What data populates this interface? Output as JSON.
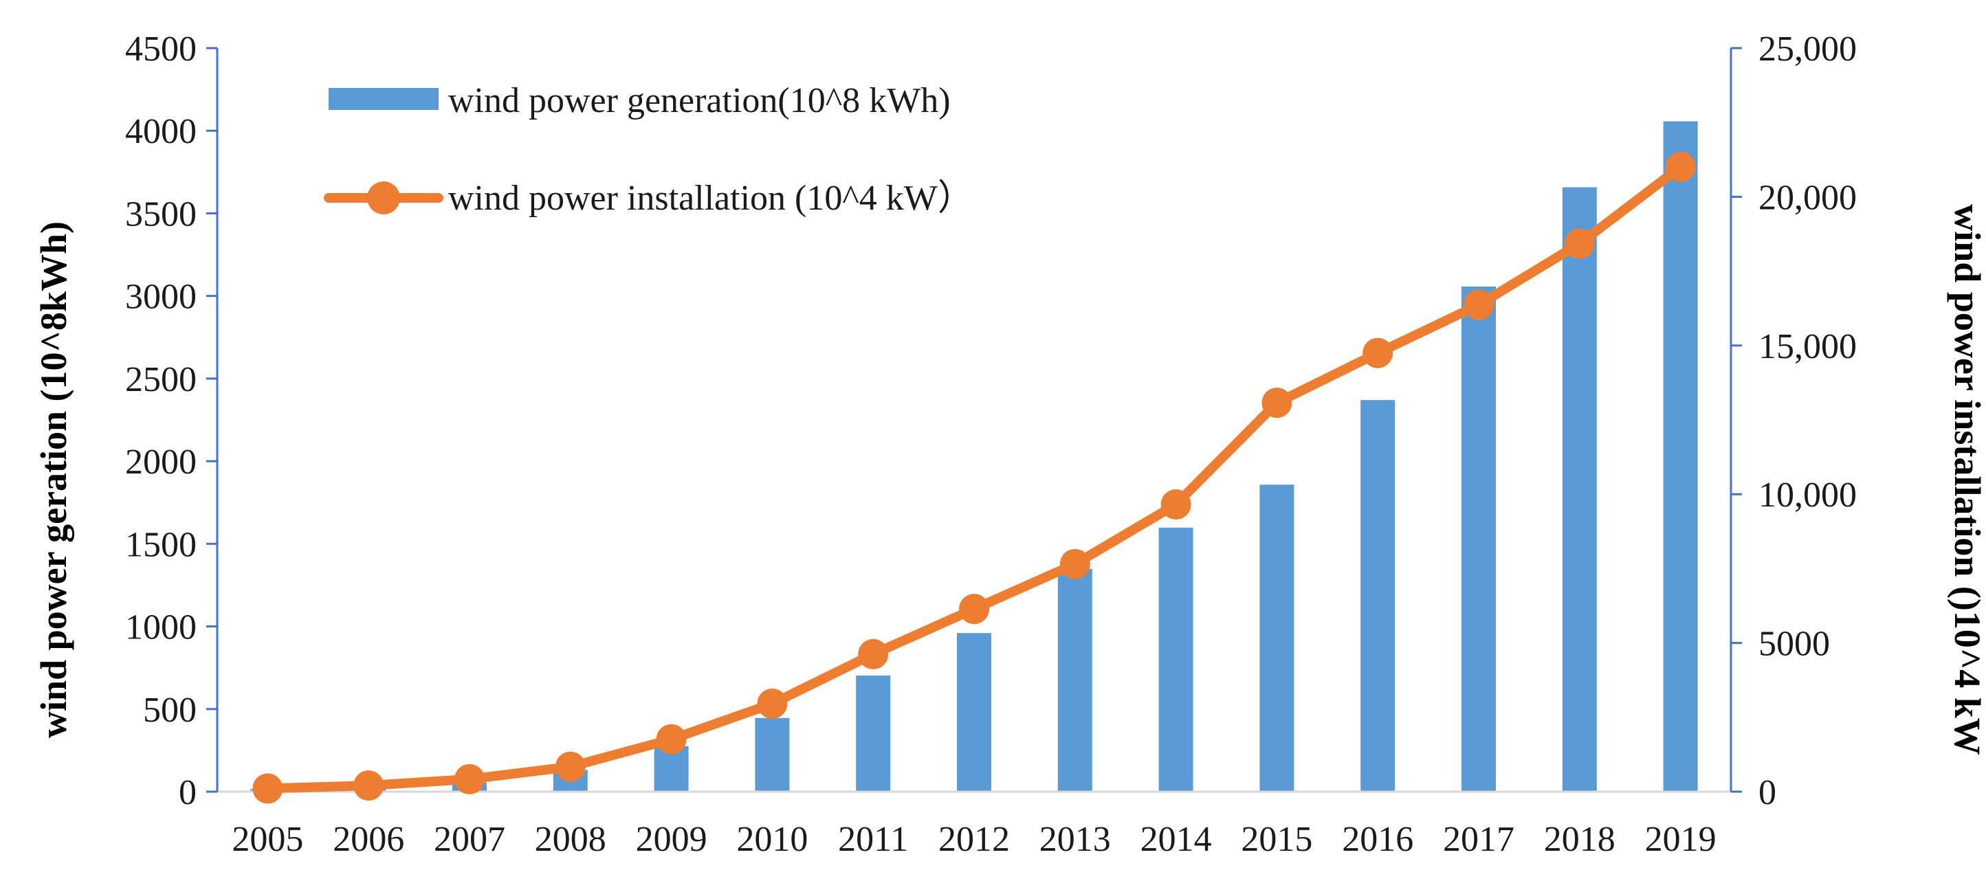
{
  "chart_data": {
    "type": "bar+line",
    "categories": [
      "2005",
      "2006",
      "2007",
      "2008",
      "2009",
      "2010",
      "2011",
      "2012",
      "2013",
      "2014",
      "2015",
      "2016",
      "2017",
      "2018",
      "2019"
    ],
    "series": [
      {
        "name": "wind power generation(10^8 kWh)",
        "type": "bar",
        "axis": "left",
        "color": "#5b9bd5",
        "values": [
          16,
          28,
          56,
          131,
          276,
          446,
          703,
          960,
          1349,
          1598,
          1858,
          2370,
          3057,
          3658,
          4057
        ]
      },
      {
        "name": "wind power installation (10^4 kW）",
        "type": "line",
        "axis": "right",
        "color": "#ed7d31",
        "values": [
          106,
          207,
          420,
          839,
          1760,
          2958,
          4623,
          6142,
          7652,
          9657,
          13075,
          14747,
          16367,
          18426,
          21005
        ]
      }
    ],
    "left_axis": {
      "label": "wind power geration (10^8kWh)",
      "min": 0,
      "max": 4500,
      "ticks": [
        0,
        500,
        1000,
        1500,
        2000,
        2500,
        3000,
        3500,
        4000,
        4500
      ],
      "tick_labels": [
        "0",
        "500",
        "1000",
        "1500",
        "2000",
        "2500",
        "3000",
        "3500",
        "4000",
        "4500"
      ]
    },
    "right_axis": {
      "label": "wind power installation ()10^4 kW",
      "min": 0,
      "max": 25000,
      "ticks": [
        0,
        5000,
        10000,
        15000,
        20000,
        25000
      ],
      "tick_labels": [
        "0",
        "5000",
        "10,000",
        "15,000",
        "20,000",
        "25,000"
      ]
    },
    "axis_color": "#4472c4",
    "baseline_color": "#d9d9d9",
    "legend_position": "top-left",
    "grid": false
  }
}
